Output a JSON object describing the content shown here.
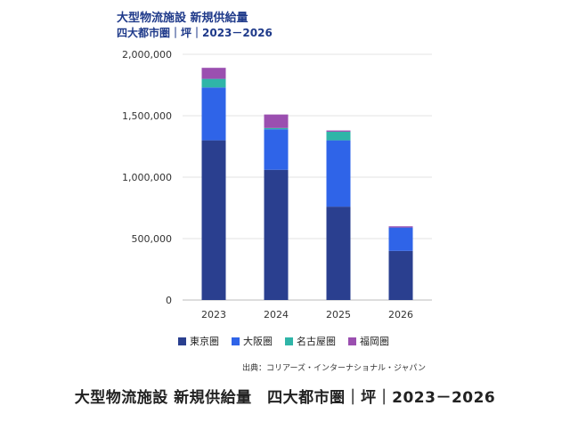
{
  "chart_data": {
    "type": "bar",
    "stacked": true,
    "title": "大型物流施設 新規供給量",
    "subtitle": "四大都市圏｜坪｜2023－2026",
    "categories": [
      "2023",
      "2024",
      "2025",
      "2026"
    ],
    "series": [
      {
        "name": "東京圏",
        "color": "#2a3f8f",
        "values": [
          1300000,
          1060000,
          760000,
          400000
        ]
      },
      {
        "name": "大阪圏",
        "color": "#2f64e8",
        "values": [
          430000,
          330000,
          540000,
          190000
        ]
      },
      {
        "name": "名古屋圏",
        "color": "#2fb5a8",
        "values": [
          70000,
          10000,
          70000,
          0
        ]
      },
      {
        "name": "福岡圏",
        "color": "#9b4fb0",
        "values": [
          90000,
          110000,
          10000,
          10000
        ]
      }
    ],
    "y_ticks": [
      "0",
      "500,000",
      "1,000,000",
      "1,500,000",
      "2,000,000"
    ],
    "ylim": [
      0,
      2000000
    ],
    "grid": true,
    "legend_position": "bottom"
  },
  "source": "出典：コリアーズ・インターナショナル・ジャパン",
  "caption": "大型物流施設 新規供給量　四大都市圏｜坪｜2023－2026"
}
